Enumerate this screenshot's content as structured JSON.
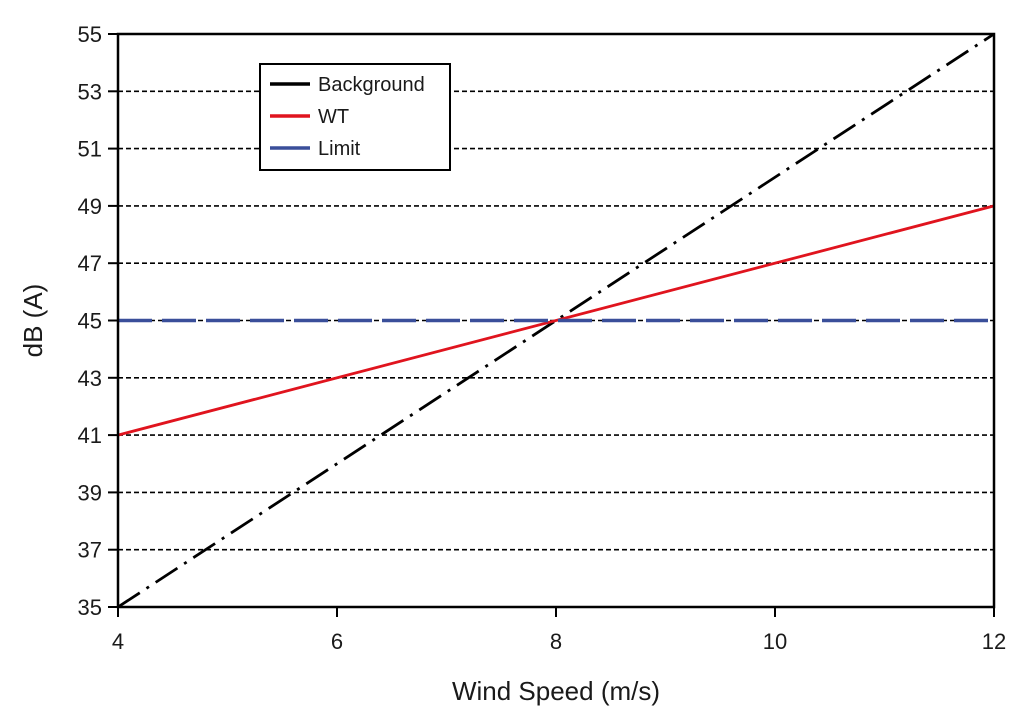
{
  "chart_data": {
    "type": "line",
    "xlabel": "Wind Speed (m/s)",
    "ylabel": "dB (A)",
    "xlim": [
      4,
      12
    ],
    "ylim": [
      35,
      55
    ],
    "x_ticks": [
      "4",
      "6",
      "8",
      "10",
      "12"
    ],
    "y_ticks": [
      "35",
      "37",
      "39",
      "41",
      "43",
      "45",
      "47",
      "49",
      "51",
      "53",
      "55"
    ],
    "x_tick_values": [
      4,
      6,
      8,
      10,
      12
    ],
    "y_tick_values": [
      35,
      37,
      39,
      41,
      43,
      45,
      47,
      49,
      51,
      53,
      55
    ],
    "grid": "horizontal dashed",
    "legend_position": "top-left",
    "series": [
      {
        "name": "Background",
        "color": "#000000",
        "style": "dash-dot",
        "x": [
          4,
          12
        ],
        "y": [
          35,
          55
        ]
      },
      {
        "name": "WT",
        "color": "#e0141e",
        "style": "solid",
        "x": [
          4,
          12
        ],
        "y": [
          41,
          49
        ]
      },
      {
        "name": "Limit",
        "color": "#3a4f9a",
        "style": "long-dash",
        "x": [
          4,
          12
        ],
        "y": [
          45,
          45
        ]
      }
    ]
  }
}
